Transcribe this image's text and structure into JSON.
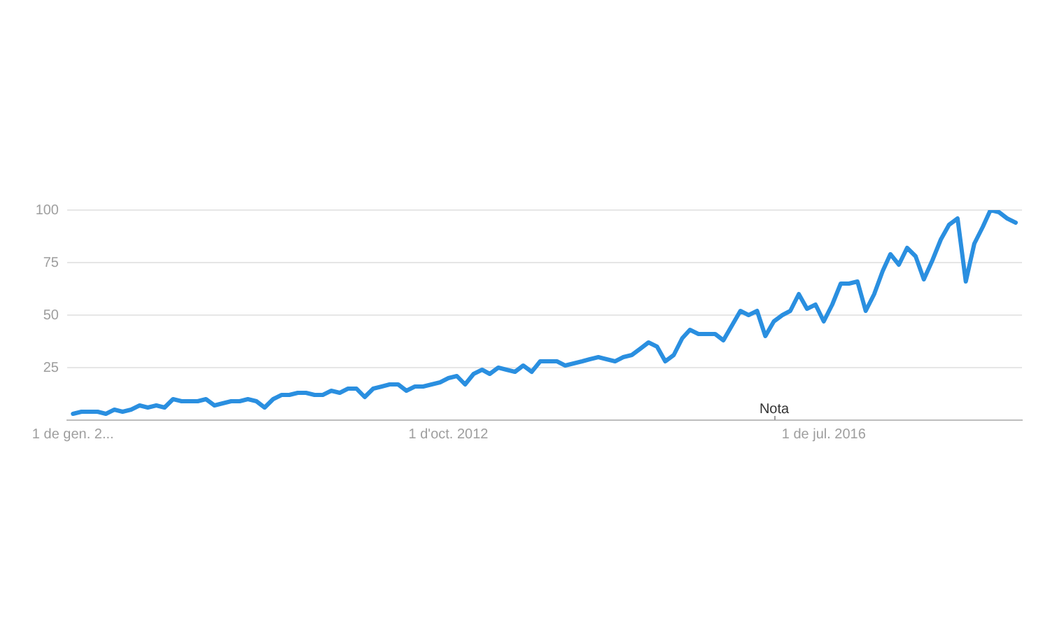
{
  "chart_data": {
    "type": "line",
    "x": [
      "2009-01",
      "2009-02",
      "2009-03",
      "2009-04",
      "2009-05",
      "2009-06",
      "2009-07",
      "2009-08",
      "2009-09",
      "2009-10",
      "2009-11",
      "2009-12",
      "2010-01",
      "2010-02",
      "2010-03",
      "2010-04",
      "2010-05",
      "2010-06",
      "2010-07",
      "2010-08",
      "2010-09",
      "2010-10",
      "2010-11",
      "2010-12",
      "2011-01",
      "2011-02",
      "2011-03",
      "2011-04",
      "2011-05",
      "2011-06",
      "2011-07",
      "2011-08",
      "2011-09",
      "2011-10",
      "2011-11",
      "2011-12",
      "2012-01",
      "2012-02",
      "2012-03",
      "2012-04",
      "2012-05",
      "2012-06",
      "2012-07",
      "2012-08",
      "2012-09",
      "2012-10",
      "2012-11",
      "2012-12",
      "2013-01",
      "2013-02",
      "2013-03",
      "2013-04",
      "2013-05",
      "2013-06",
      "2013-07",
      "2013-08",
      "2013-09",
      "2013-10",
      "2013-11",
      "2013-12",
      "2014-01",
      "2014-02",
      "2014-03",
      "2014-04",
      "2014-05",
      "2014-06",
      "2014-07",
      "2014-08",
      "2014-09",
      "2014-10",
      "2014-11",
      "2014-12",
      "2015-01",
      "2015-02",
      "2015-03",
      "2015-04",
      "2015-05",
      "2015-06",
      "2015-07",
      "2015-08",
      "2015-09",
      "2015-10",
      "2015-11",
      "2015-12",
      "2016-01",
      "2016-02",
      "2016-03",
      "2016-04",
      "2016-05",
      "2016-06",
      "2016-07",
      "2016-08",
      "2016-09",
      "2016-10",
      "2016-11",
      "2016-12",
      "2017-01",
      "2017-02",
      "2017-03",
      "2017-04",
      "2017-05",
      "2017-06",
      "2017-07",
      "2017-08",
      "2017-09",
      "2017-10",
      "2017-11",
      "2017-12",
      "2018-01",
      "2018-02",
      "2018-03",
      "2018-04",
      "2018-05",
      "2018-06"
    ],
    "values": [
      3,
      4,
      4,
      4,
      3,
      5,
      4,
      5,
      7,
      6,
      7,
      6,
      10,
      9,
      9,
      9,
      10,
      7,
      8,
      9,
      9,
      10,
      9,
      6,
      10,
      12,
      12,
      13,
      13,
      12,
      12,
      14,
      13,
      15,
      15,
      11,
      15,
      16,
      17,
      17,
      14,
      16,
      16,
      17,
      18,
      20,
      21,
      17,
      22,
      24,
      22,
      25,
      24,
      23,
      26,
      23,
      28,
      28,
      28,
      26,
      27,
      28,
      29,
      30,
      29,
      28,
      30,
      31,
      34,
      37,
      35,
      28,
      31,
      39,
      43,
      41,
      41,
      41,
      38,
      45,
      52,
      50,
      52,
      40,
      47,
      50,
      52,
      60,
      53,
      55,
      47,
      55,
      65,
      65,
      66,
      52,
      60,
      71,
      79,
      74,
      82,
      78,
      67,
      76,
      86,
      93,
      96,
      66,
      84,
      92,
      100,
      99,
      96,
      94
    ],
    "color": "#2a8fe0",
    "xlim": [
      "2008-12-11",
      "2018-06-24"
    ],
    "xticks": [
      {
        "value": "2009-01-01",
        "label": "1 de gen. 2..."
      },
      {
        "value": "2012-10-01",
        "label": "1 d'oct. 2012"
      },
      {
        "value": "2016-07-01",
        "label": "1 de jul. 2016"
      }
    ],
    "ylim": [
      0,
      100
    ],
    "yticks": [
      25,
      50,
      75,
      100
    ],
    "grid": "y",
    "legend": false,
    "marker": "none",
    "annotations": [
      "Nota"
    ]
  }
}
